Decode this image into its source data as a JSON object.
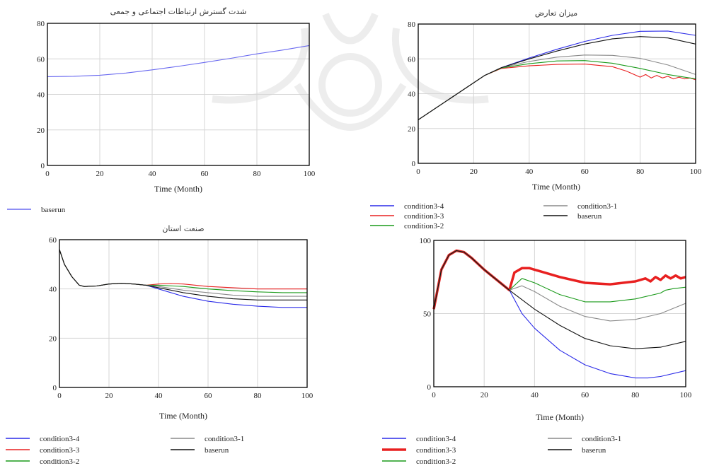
{
  "chart_data": [
    {
      "type": "line",
      "title": "شدت گسترش ارتباطات اجتماعی و جمعی",
      "xlabel": "Time (Month)",
      "ylabel": "",
      "xlim": [
        0,
        100
      ],
      "ylim": [
        0,
        80
      ],
      "xticks": [
        0,
        20,
        40,
        60,
        80,
        100
      ],
      "yticks": [
        0,
        20,
        40,
        60,
        80
      ],
      "grid": true,
      "legend_position": "bottom",
      "series": [
        {
          "name": "baserun",
          "color": "#6a6af0",
          "x": [
            0,
            10,
            20,
            30,
            40,
            50,
            60,
            70,
            80,
            90,
            100
          ],
          "y": [
            50,
            50.2,
            50.8,
            52,
            53.8,
            55.8,
            58,
            60.3,
            62.8,
            65,
            67.5
          ]
        }
      ]
    },
    {
      "type": "line",
      "title": "میزان تعارض",
      "xlabel": "Time (Month)",
      "ylabel": "",
      "xlim": [
        0,
        100
      ],
      "ylim": [
        0,
        80
      ],
      "xticks": [
        0,
        20,
        40,
        60,
        80,
        100
      ],
      "yticks": [
        0,
        20,
        40,
        60,
        80
      ],
      "grid": true,
      "legend_position": "bottom",
      "series": [
        {
          "name": "condition3-4",
          "color": "#2a2ae8",
          "x": [
            0,
            24,
            30,
            40,
            50,
            60,
            70,
            80,
            90,
            100
          ],
          "y": [
            25,
            50.5,
            55,
            60.5,
            65.5,
            70,
            73.5,
            75.8,
            76,
            73.5
          ]
        },
        {
          "name": "condition3-3",
          "color": "#e82020",
          "x": [
            0,
            24,
            30,
            40,
            50,
            60,
            70,
            75,
            80,
            82,
            84,
            86,
            88,
            90,
            92,
            94,
            96,
            98,
            100
          ],
          "y": [
            25,
            50.5,
            54.5,
            56,
            56.8,
            57,
            55.5,
            53,
            49.5,
            51,
            49,
            50.5,
            49,
            50,
            48.5,
            49.5,
            48.5,
            49,
            48
          ]
        },
        {
          "name": "condition3-2",
          "color": "#1a9a1a",
          "x": [
            0,
            24,
            30,
            40,
            50,
            60,
            70,
            80,
            90,
            100
          ],
          "y": [
            25,
            50.5,
            54.8,
            57.2,
            58.8,
            59,
            57.5,
            54.5,
            51,
            48.5
          ]
        },
        {
          "name": "condition3-1",
          "color": "#8a8a8a",
          "x": [
            0,
            24,
            30,
            40,
            50,
            60,
            70,
            80,
            90,
            100
          ],
          "y": [
            25,
            50.5,
            55,
            58.5,
            61,
            62.2,
            62,
            60.3,
            56.5,
            51
          ]
        },
        {
          "name": "baserun",
          "color": "#111111",
          "x": [
            0,
            24,
            30,
            40,
            50,
            60,
            70,
            80,
            90,
            100
          ],
          "y": [
            25,
            50.5,
            55,
            60,
            64.5,
            68.5,
            71.5,
            72.8,
            72,
            68.5
          ]
        }
      ]
    },
    {
      "type": "line",
      "title": "صنعت استان",
      "xlabel": "Time (Month)",
      "ylabel": "",
      "xlim": [
        0,
        100
      ],
      "ylim": [
        0,
        60
      ],
      "xticks": [
        0,
        20,
        40,
        60,
        80,
        100
      ],
      "yticks": [
        0,
        20,
        40,
        60
      ],
      "grid": true,
      "legend_position": "bottom",
      "series": [
        {
          "name": "condition3-4",
          "color": "#2a2ae8",
          "x": [
            0,
            2,
            5,
            8,
            10,
            15,
            20,
            25,
            30,
            35,
            40,
            50,
            60,
            70,
            80,
            90,
            100
          ],
          "y": [
            56,
            50,
            45,
            41.5,
            41,
            41.2,
            42,
            42.3,
            42,
            41.5,
            40,
            37,
            35,
            33.8,
            33,
            32.5,
            32.5
          ]
        },
        {
          "name": "condition3-3",
          "color": "#e82020",
          "x": [
            0,
            2,
            5,
            8,
            10,
            15,
            20,
            25,
            30,
            35,
            40,
            45,
            50,
            60,
            70,
            80,
            90,
            100
          ],
          "y": [
            56,
            50,
            45,
            41.5,
            41,
            41.2,
            42,
            42.3,
            42,
            41.5,
            42,
            42.2,
            42,
            41,
            40.5,
            40,
            40,
            40
          ]
        },
        {
          "name": "condition3-2",
          "color": "#1a9a1a",
          "x": [
            0,
            2,
            5,
            8,
            10,
            15,
            20,
            25,
            30,
            35,
            40,
            50,
            60,
            70,
            80,
            90,
            100
          ],
          "y": [
            56,
            50,
            45,
            41.5,
            41,
            41.2,
            42,
            42.3,
            42,
            41.5,
            41.5,
            41,
            40,
            39.3,
            38.8,
            38.5,
            38.5
          ]
        },
        {
          "name": "condition3-1",
          "color": "#8a8a8a",
          "x": [
            0,
            2,
            5,
            8,
            10,
            15,
            20,
            25,
            30,
            35,
            40,
            50,
            60,
            70,
            80,
            90,
            100
          ],
          "y": [
            56,
            50,
            45,
            41.5,
            41,
            41.2,
            42,
            42.3,
            42,
            41.5,
            41,
            39.5,
            38.5,
            37.5,
            37,
            37,
            37
          ]
        },
        {
          "name": "baserun",
          "color": "#111111",
          "x": [
            0,
            2,
            5,
            8,
            10,
            15,
            20,
            25,
            30,
            35,
            40,
            50,
            60,
            70,
            80,
            90,
            100
          ],
          "y": [
            56,
            50,
            45,
            41.5,
            41,
            41.2,
            42,
            42.3,
            42,
            41.5,
            40.5,
            38.5,
            37,
            36,
            35.5,
            35.5,
            35.5
          ]
        }
      ]
    },
    {
      "type": "line",
      "title": "",
      "xlabel": "Time (Month)",
      "ylabel": "",
      "xlim": [
        0,
        100
      ],
      "ylim": [
        0,
        100
      ],
      "xticks": [
        0,
        20,
        40,
        60,
        80,
        100
      ],
      "yticks": [
        0,
        50,
        100
      ],
      "grid": true,
      "legend_position": "bottom",
      "series": [
        {
          "name": "condition3-4",
          "color": "#2a2ae8",
          "x": [
            0,
            3,
            6,
            9,
            12,
            15,
            20,
            25,
            30,
            35,
            40,
            50,
            60,
            70,
            80,
            85,
            90,
            100
          ],
          "y": [
            53,
            80,
            90,
            93,
            92,
            88,
            80,
            73,
            66,
            50,
            40,
            25,
            15,
            9,
            6,
            6,
            7,
            11
          ]
        },
        {
          "name": "condition3-3",
          "color": "#e82020",
          "x": [
            0,
            3,
            6,
            9,
            12,
            15,
            20,
            25,
            30,
            32,
            35,
            38,
            40,
            50,
            60,
            70,
            80,
            84,
            86,
            88,
            90,
            92,
            94,
            96,
            98,
            100
          ],
          "y": [
            53,
            80,
            90,
            93,
            92,
            88,
            80,
            73,
            66,
            78,
            81,
            81,
            80,
            75,
            71,
            70,
            72,
            74,
            72,
            75,
            73,
            76,
            74,
            76,
            74,
            75
          ]
        },
        {
          "name": "condition3-2",
          "color": "#1a9a1a",
          "x": [
            0,
            3,
            6,
            9,
            12,
            15,
            20,
            25,
            30,
            35,
            40,
            50,
            60,
            70,
            80,
            90,
            92,
            95,
            100
          ],
          "y": [
            53,
            80,
            90,
            93,
            92,
            88,
            80,
            73,
            66,
            74,
            71,
            63,
            58,
            58,
            60,
            64,
            66,
            67,
            68
          ]
        },
        {
          "name": "condition3-1",
          "color": "#8a8a8a",
          "x": [
            0,
            3,
            6,
            9,
            12,
            15,
            20,
            25,
            30,
            35,
            40,
            50,
            60,
            70,
            80,
            90,
            100
          ],
          "y": [
            53,
            80,
            90,
            93,
            92,
            88,
            80,
            73,
            66,
            69,
            65,
            55,
            48,
            45,
            46,
            50,
            57
          ]
        },
        {
          "name": "baserun",
          "color": "#111111",
          "x": [
            0,
            3,
            6,
            9,
            12,
            15,
            20,
            25,
            30,
            40,
            50,
            60,
            70,
            80,
            90,
            100
          ],
          "y": [
            53,
            80,
            90,
            93,
            92,
            88,
            80,
            73,
            66,
            53,
            42,
            33,
            28,
            26,
            27,
            31
          ]
        }
      ]
    }
  ]
}
